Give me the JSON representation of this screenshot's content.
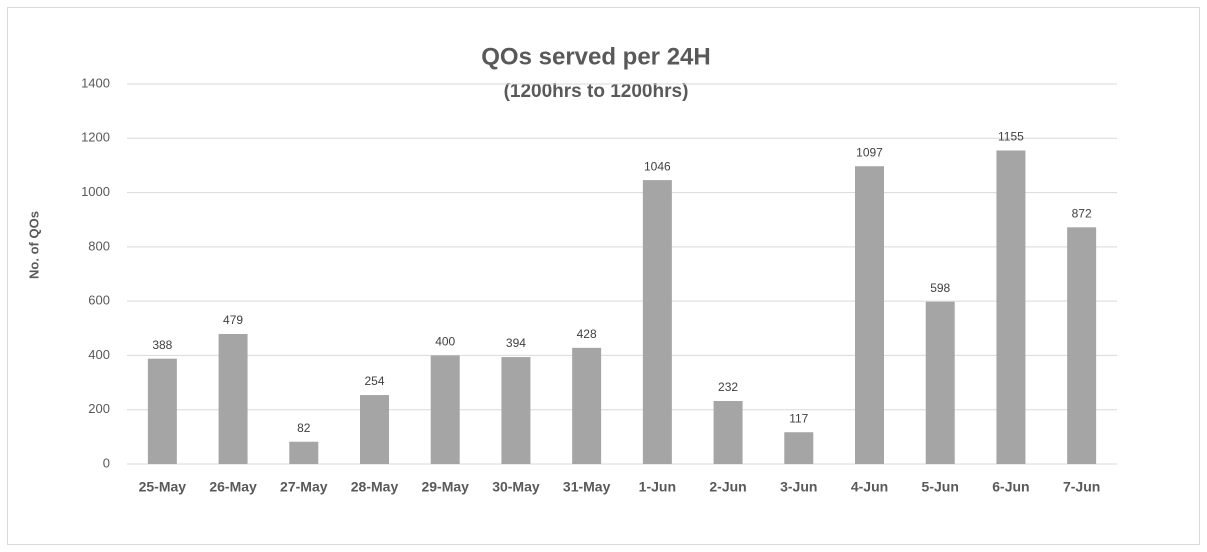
{
  "chart_data": {
    "type": "bar",
    "title": "QOs served per 24H",
    "subtitle": "(1200hrs to 1200hrs)",
    "y_label": "No. of QOs",
    "categories": [
      "25-May",
      "26-May",
      "27-May",
      "28-May",
      "29-May",
      "30-May",
      "31-May",
      "1-Jun",
      "2-Jun",
      "3-Jun",
      "4-Jun",
      "5-Jun",
      "6-Jun",
      "7-Jun"
    ],
    "values": [
      388,
      479,
      82,
      254,
      400,
      394,
      428,
      1046,
      232,
      117,
      1097,
      598,
      1155,
      872
    ],
    "color": "#a5a5a5",
    "ylim": [
      0,
      1400
    ],
    "yticks": [
      0,
      200,
      400,
      600,
      800,
      1000,
      1200,
      1400
    ],
    "grid": true
  }
}
